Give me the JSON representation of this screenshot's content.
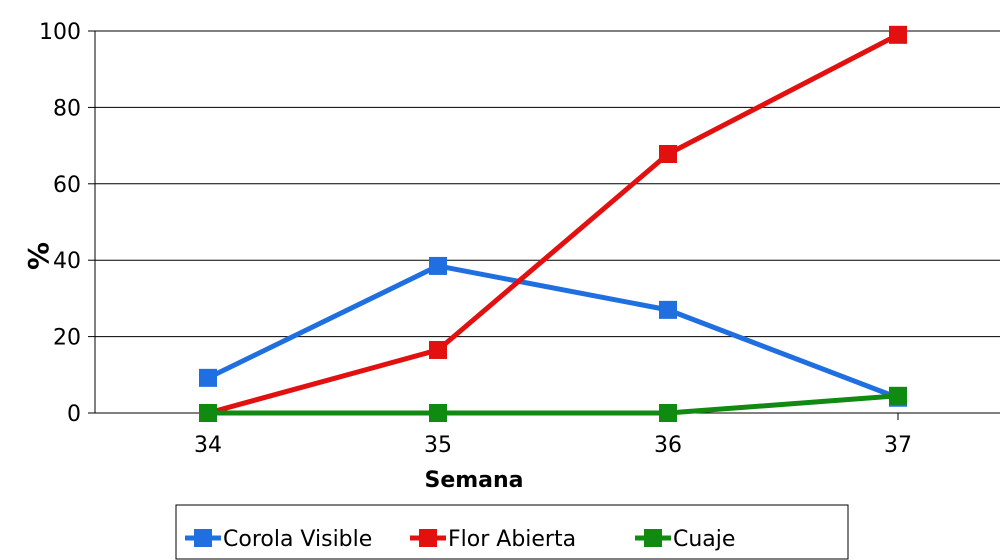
{
  "chart_data": {
    "type": "line",
    "title": "",
    "xlabel": "Semana",
    "ylabel": "%",
    "categories": [
      "34",
      "35",
      "36",
      "37"
    ],
    "y_ticks": [
      "0",
      "20",
      "40",
      "60",
      "80",
      "100"
    ],
    "ylim": [
      0,
      100
    ],
    "grid": true,
    "legend_position": "bottom",
    "series": [
      {
        "name": "Corola Visible",
        "color": "#1f6fe0",
        "values": [
          9.2,
          38.5,
          27.0,
          4.0
        ]
      },
      {
        "name": "Flor Abierta",
        "color": "#e31010",
        "values": [
          0,
          16.5,
          67.8,
          99.0
        ]
      },
      {
        "name": "Cuaje",
        "color": "#108a10",
        "values": [
          0,
          0,
          0,
          4.5
        ]
      }
    ]
  }
}
